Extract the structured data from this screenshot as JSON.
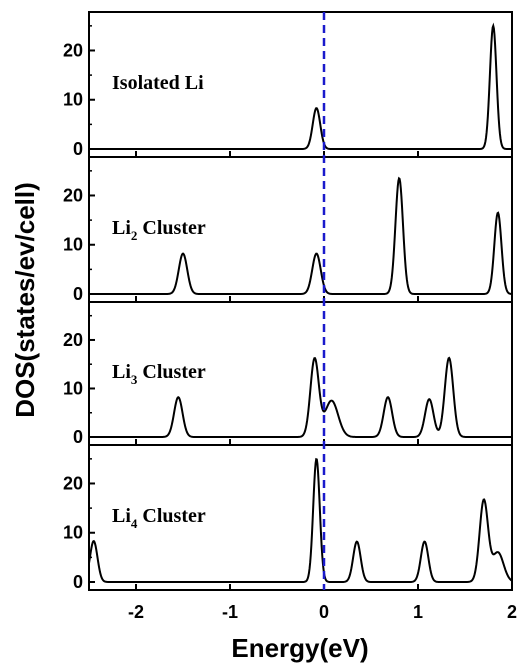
{
  "chart_data": {
    "type": "line",
    "panels": [
      {
        "label": "Isolated Li",
        "label_subscript": "",
        "label_suffix": "",
        "ylim": [
          0,
          27
        ],
        "yticks": [
          0,
          10,
          20
        ],
        "peaks": [
          {
            "x": -0.08,
            "height": 8.3,
            "width": 0.04
          },
          {
            "x": 1.8,
            "height": 25,
            "width": 0.035
          }
        ]
      },
      {
        "label": "Li",
        "label_subscript": "2",
        "label_suffix": " Cluster",
        "ylim": [
          0,
          27
        ],
        "yticks": [
          0,
          10,
          20
        ],
        "peaks": [
          {
            "x": -1.5,
            "height": 8.2,
            "width": 0.045
          },
          {
            "x": -0.08,
            "height": 8.2,
            "width": 0.045
          },
          {
            "x": 0.8,
            "height": 23.5,
            "width": 0.04
          },
          {
            "x": 1.85,
            "height": 16.5,
            "width": 0.038
          }
        ]
      },
      {
        "label": "Li",
        "label_subscript": "3",
        "label_suffix": " Cluster",
        "ylim": [
          0,
          27
        ],
        "yticks": [
          0,
          10,
          20
        ],
        "peaks": [
          {
            "x": -1.55,
            "height": 8.2,
            "width": 0.045
          },
          {
            "x": -0.1,
            "height": 16,
            "width": 0.045
          },
          {
            "x": 0.08,
            "height": 7.5,
            "width": 0.07
          },
          {
            "x": 0.68,
            "height": 8.2,
            "width": 0.045
          },
          {
            "x": 1.12,
            "height": 7.8,
            "width": 0.045
          },
          {
            "x": 1.33,
            "height": 16.3,
            "width": 0.045
          }
        ]
      },
      {
        "label": "Li",
        "label_subscript": "4",
        "label_suffix": " Cluster",
        "ylim": [
          0,
          27
        ],
        "yticks": [
          0,
          10,
          20
        ],
        "peaks": [
          {
            "x": -2.45,
            "height": 8.3,
            "width": 0.04
          },
          {
            "x": -0.08,
            "height": 25,
            "width": 0.035
          },
          {
            "x": 0.35,
            "height": 8.2,
            "width": 0.04
          },
          {
            "x": 1.07,
            "height": 8.2,
            "width": 0.04
          },
          {
            "x": 1.7,
            "height": 16.5,
            "width": 0.045
          },
          {
            "x": 1.85,
            "height": 6,
            "width": 0.06
          }
        ]
      }
    ],
    "xlim": [
      -2.5,
      2
    ],
    "xticks": [
      -2,
      -1,
      0,
      1,
      2
    ],
    "xtick_labels": [
      "-2",
      "-1",
      "0",
      "1",
      "2"
    ],
    "xlabel": "Energy(eV)",
    "ylabel": "DOS(states/ev/cell)",
    "fermi_level": 0,
    "colors": {
      "curve": "#000000",
      "fermi_line": "#1a1acc",
      "axes": "#000000"
    }
  }
}
